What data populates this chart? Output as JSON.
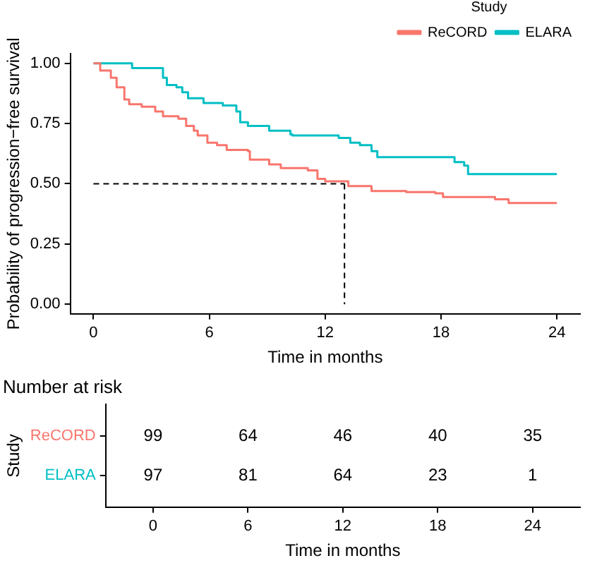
{
  "chart_data": [
    {
      "type": "step",
      "xlabel": "Time in months",
      "ylabel": "Probability of progression−free survival",
      "legend_title": "Study",
      "legend": "top",
      "grid": false,
      "xlim": [
        -1.2,
        25.2
      ],
      "xticks": [
        0,
        6,
        12,
        18,
        24
      ],
      "ylim": [
        -0.04,
        1.04
      ],
      "yticks": [
        {
          "value": 0,
          "label": "0.00"
        },
        {
          "value": 0.25,
          "label": "0.25"
        },
        {
          "value": 0.5,
          "label": "0.50"
        },
        {
          "value": 0.75,
          "label": "0.75"
        },
        {
          "value": 1,
          "label": "1.00"
        }
      ],
      "series": [
        {
          "name": "ReCORD",
          "color": "#f8766d",
          "x": [
            0,
            0.35,
            0.9,
            1.2,
            1.6,
            1.85,
            2.5,
            3.2,
            3.6,
            4.4,
            4.8,
            5.2,
            5.4,
            5.9,
            6.4,
            6.9,
            8.0,
            8.1,
            9.1,
            9.7,
            11.1,
            11.6,
            12.0,
            13.2,
            14.4,
            16.2,
            17.7,
            18.1,
            20.8,
            21.5,
            24
          ],
          "values": [
            1,
            0.97,
            0.94,
            0.9,
            0.85,
            0.83,
            0.82,
            0.8,
            0.78,
            0.77,
            0.74,
            0.72,
            0.7,
            0.67,
            0.66,
            0.64,
            0.635,
            0.6,
            0.58,
            0.565,
            0.555,
            0.52,
            0.51,
            0.49,
            0.47,
            0.465,
            0.46,
            0.445,
            0.435,
            0.42,
            0.42
          ]
        },
        {
          "name": "ELARA",
          "color": "#00bfc4",
          "x": [
            0,
            2.0,
            3.6,
            3.8,
            4.3,
            4.6,
            4.9,
            5.7,
            6.7,
            7.4,
            7.6,
            8.0,
            9.1,
            10.2,
            10.3,
            12.7,
            13.3,
            13.8,
            14.4,
            14.7,
            18.7,
            19.2,
            19.4,
            24
          ],
          "values": [
            1,
            0.98,
            0.94,
            0.91,
            0.9,
            0.88,
            0.855,
            0.835,
            0.825,
            0.8,
            0.755,
            0.74,
            0.72,
            0.705,
            0.7,
            0.69,
            0.67,
            0.66,
            0.635,
            0.61,
            0.59,
            0.575,
            0.54,
            0.54
          ]
        }
      ],
      "ref_lines": [
        {
          "axis": "y",
          "value": 0.5,
          "line_style": "dashed",
          "color": "#000000"
        },
        {
          "axis": "x",
          "value": 13,
          "line_style": "dashed",
          "color": "#000000"
        }
      ]
    },
    {
      "type": "heatmap",
      "title": "Number at risk",
      "xlabel": "Time in months",
      "ylabel": "Study",
      "data_labels": true,
      "categories": [
        "0",
        "6",
        "12",
        "18",
        "24"
      ],
      "y_categories": [
        "ReCORD",
        "ELARA"
      ],
      "colors": [
        "#f8766d",
        "#00bfc4"
      ],
      "cells": [
        [
          99,
          64,
          46,
          40,
          35
        ],
        [
          97,
          81,
          64,
          23,
          1
        ]
      ]
    }
  ]
}
